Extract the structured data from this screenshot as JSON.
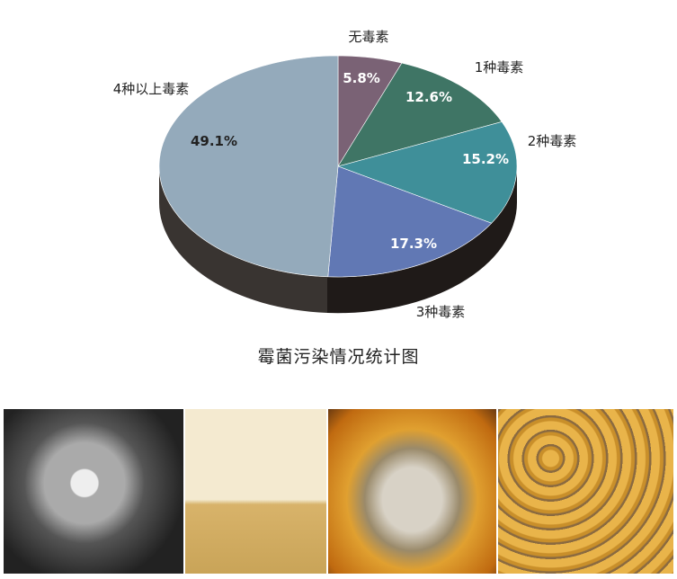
{
  "chart_data": {
    "type": "pie",
    "style": "3d",
    "title": "霉菌污染情况统计图",
    "slices": [
      {
        "label": "无毒素",
        "value": 5.8,
        "value_label": "5.8%",
        "color": "#7a6275"
      },
      {
        "label": "1种毒素",
        "value": 12.6,
        "value_label": "12.6%",
        "color": "#3f7565"
      },
      {
        "label": "2种毒素",
        "value": 15.2,
        "value_label": "15.2%",
        "color": "#3f8f99"
      },
      {
        "label": "3种毒素",
        "value": 17.3,
        "value_label": "17.3%",
        "color": "#6178b4"
      },
      {
        "label": "4种以上毒素",
        "value": 49.1,
        "value_label": "49.1%",
        "color": "#94aabb"
      }
    ],
    "start": "top",
    "direction": "clockwise"
  },
  "photos": [
    {
      "subject": "mold-micrograph"
    },
    {
      "subject": "mold-on-culture"
    },
    {
      "subject": "moldy-corn-cob"
    },
    {
      "subject": "moldy-corn-kernels"
    }
  ]
}
